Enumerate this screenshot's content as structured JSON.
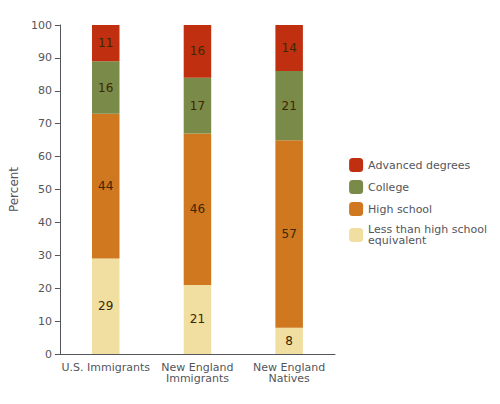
{
  "chart_data": {
    "type": "bar",
    "stacked": true,
    "categories": [
      "U.S. Immigrants",
      "New England\nImmigrants",
      "New England\nNatives"
    ],
    "ylabel": "Percent",
    "series": [
      {
        "name": "Less than high school\nequivalent",
        "color": "#F0DFA0",
        "values": [
          29,
          21,
          8
        ]
      },
      {
        "name": "High school",
        "color": "#D07820",
        "values": [
          44,
          46,
          57
        ]
      },
      {
        "name": "College",
        "color": "#7A8A48",
        "values": [
          16,
          17,
          21
        ]
      },
      {
        "name": "Advanced degrees",
        "color": "#C03010",
        "values": [
          11,
          16,
          14
        ]
      }
    ],
    "ylim": [
      0,
      100
    ],
    "yticks": [
      0,
      10,
      20,
      30,
      40,
      50,
      60,
      70,
      80,
      90,
      100
    ],
    "grid": false,
    "data_labels": true,
    "legend": "right"
  }
}
